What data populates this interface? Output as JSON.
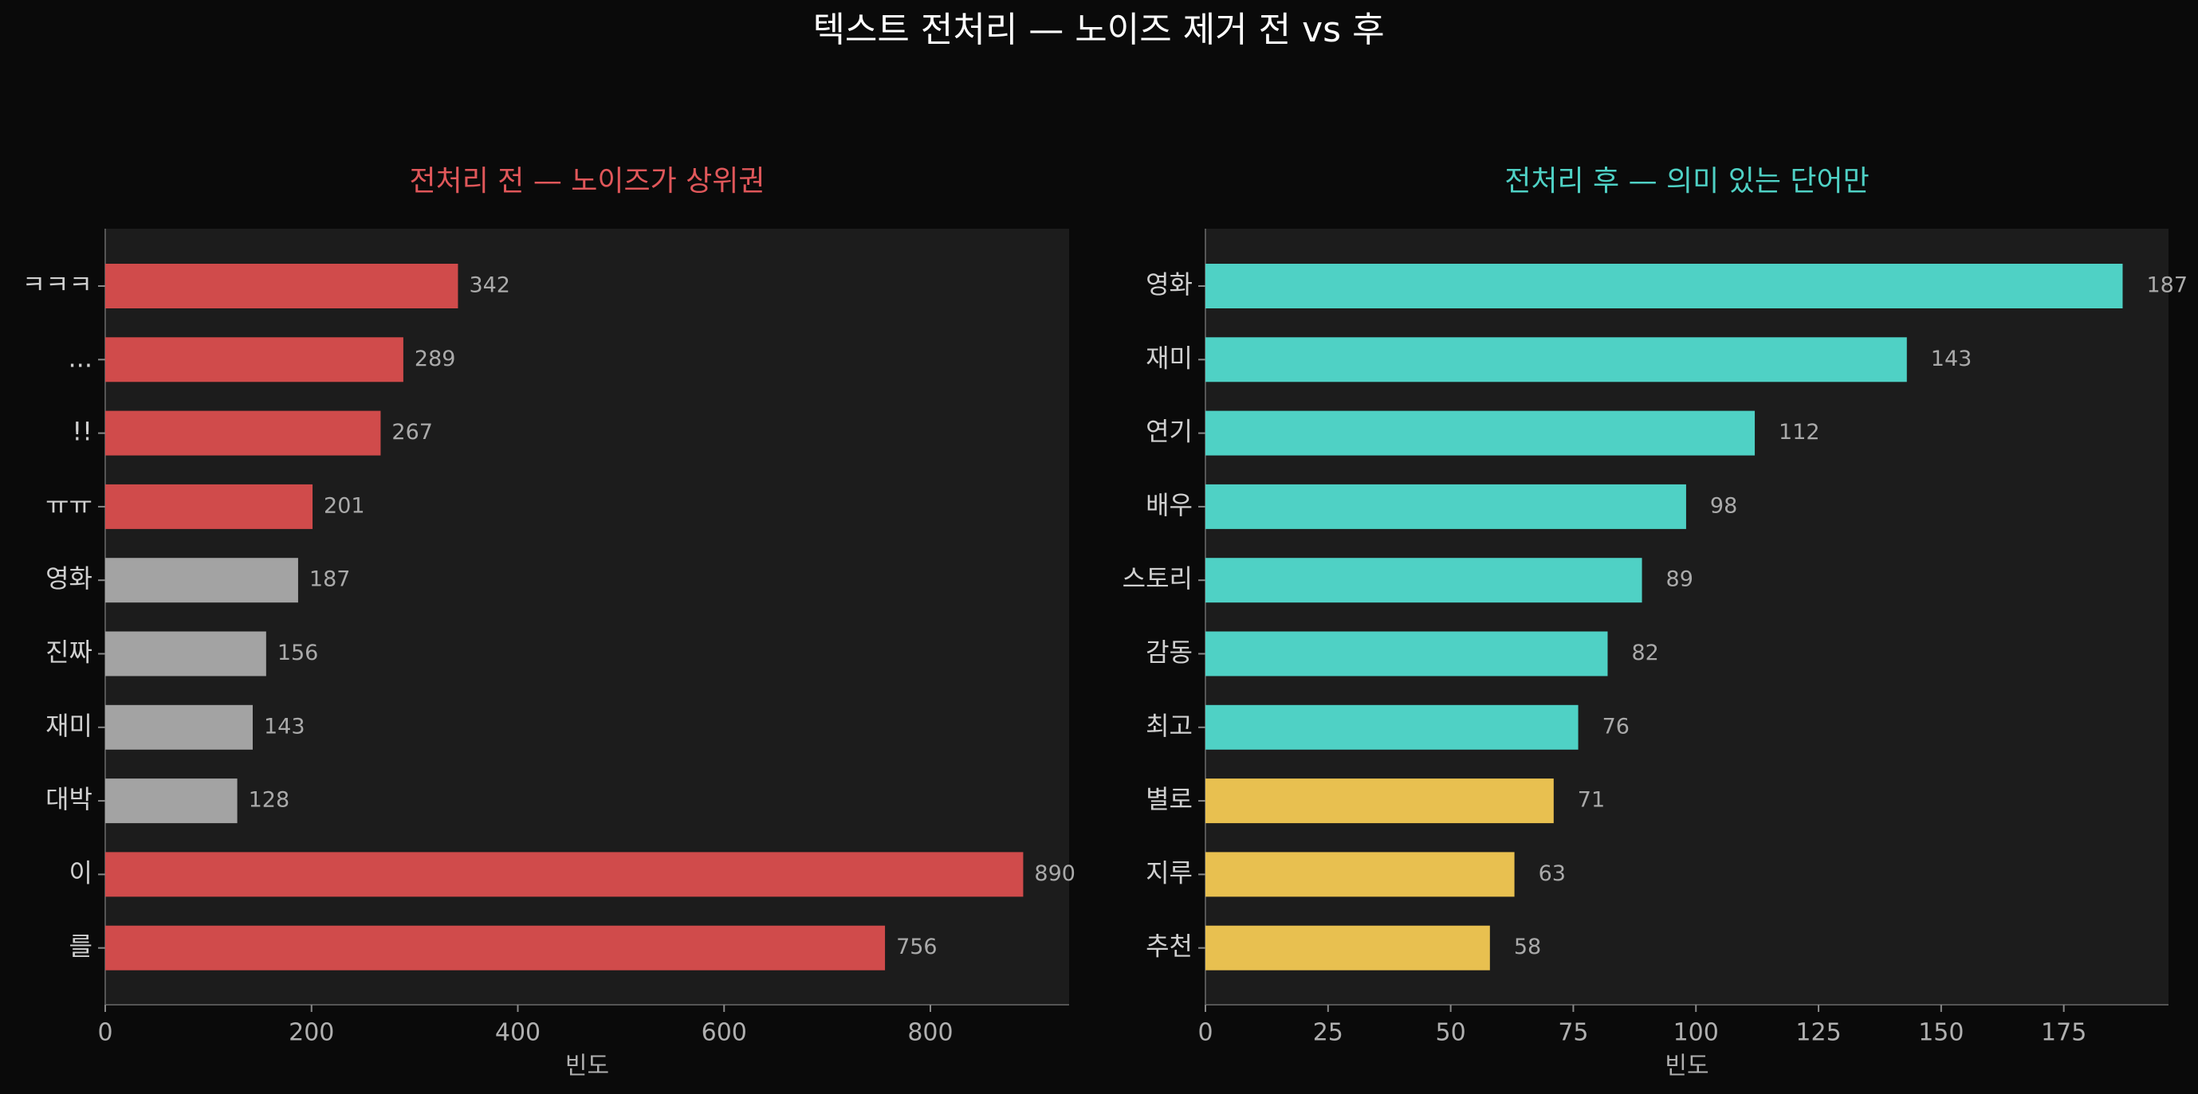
{
  "title": "텍스트 전처리 — 노이즈 제거 전 vs 후",
  "chart_data": [
    {
      "type": "barh",
      "title": "전처리 전 — 노이즈가 상위권",
      "title_color": "#e0575a",
      "categories": [
        "ㅋㅋㅋ",
        "...",
        "!!",
        "ㅠㅠ",
        "영화",
        "진짜",
        "재미",
        "대박",
        "이",
        "를"
      ],
      "values": [
        342,
        289,
        267,
        201,
        187,
        156,
        143,
        128,
        890,
        756
      ],
      "colors": [
        "#d04b4b",
        "#d04b4b",
        "#d04b4b",
        "#d04b4b",
        "#a3a3a3",
        "#a3a3a3",
        "#a3a3a3",
        "#a3a3a3",
        "#d04b4b",
        "#d04b4b"
      ],
      "xlabel": "빈도",
      "xlim": [
        0,
        934.5
      ],
      "xticks": [
        0,
        200,
        400,
        600,
        800
      ]
    },
    {
      "type": "barh",
      "title": "전처리 후 — 의미 있는 단어만",
      "title_color": "#4fd1c5",
      "categories": [
        "영화",
        "재미",
        "연기",
        "배우",
        "스토리",
        "감동",
        "최고",
        "별로",
        "지루",
        "추천"
      ],
      "values": [
        187,
        143,
        112,
        98,
        89,
        82,
        76,
        71,
        63,
        58
      ],
      "colors": [
        "#4fd1c5",
        "#4fd1c5",
        "#4fd1c5",
        "#4fd1c5",
        "#4fd1c5",
        "#4fd1c5",
        "#4fd1c5",
        "#e8c050",
        "#e8c050",
        "#e8c050"
      ],
      "xlabel": "빈도",
      "xlim": [
        0,
        196.35
      ],
      "xticks": [
        0,
        25,
        50,
        75,
        100,
        125,
        150,
        175
      ]
    }
  ]
}
